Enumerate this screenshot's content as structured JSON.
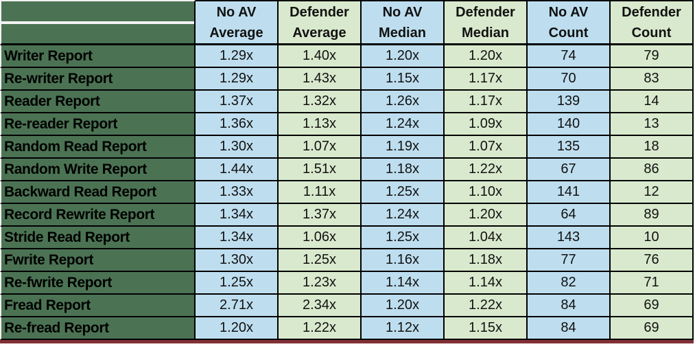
{
  "colors": {
    "label_column_bg": "#4b7353",
    "blue_column_bg": "#bedeef",
    "green_column_bg": "#d9e9cd",
    "gridline": "#000000",
    "outer_white_edge": "#f2f2f2",
    "bottom_rule": "#823036",
    "text": "#000000"
  },
  "chart_data": {
    "type": "table",
    "header": [
      {
        "lines": [
          "No AV",
          "Average"
        ],
        "fill": "blue"
      },
      {
        "lines": [
          "Defender",
          "Average"
        ],
        "fill": "green"
      },
      {
        "lines": [
          "No AV",
          "Median"
        ],
        "fill": "blue"
      },
      {
        "lines": [
          "Defender",
          "Median"
        ],
        "fill": "green"
      },
      {
        "lines": [
          "No AV",
          "Count"
        ],
        "fill": "blue"
      },
      {
        "lines": [
          "Defender",
          "Count"
        ],
        "fill": "green"
      }
    ],
    "rows": [
      {
        "label": "Writer Report",
        "values": [
          "1.29x",
          "1.40x",
          "1.20x",
          "1.20x",
          "74",
          "79"
        ]
      },
      {
        "label": "Re-writer Report",
        "values": [
          "1.29x",
          "1.43x",
          "1.15x",
          "1.17x",
          "70",
          "83"
        ]
      },
      {
        "label": "Reader Report",
        "values": [
          "1.37x",
          "1.32x",
          "1.26x",
          "1.17x",
          "139",
          "14"
        ]
      },
      {
        "label": "Re-reader Report",
        "values": [
          "1.36x",
          "1.13x",
          "1.24x",
          "1.09x",
          "140",
          "13"
        ]
      },
      {
        "label": "Random Read Report",
        "values": [
          "1.30x",
          "1.07x",
          "1.19x",
          "1.07x",
          "135",
          "18"
        ]
      },
      {
        "label": "Random Write Report",
        "values": [
          "1.44x",
          "1.51x",
          "1.18x",
          "1.22x",
          "67",
          "86"
        ]
      },
      {
        "label": "Backward Read Report",
        "values": [
          "1.33x",
          "1.11x",
          "1.25x",
          "1.10x",
          "141",
          "12"
        ]
      },
      {
        "label": "Record Rewrite Report",
        "values": [
          "1.34x",
          "1.37x",
          "1.24x",
          "1.20x",
          "64",
          "89"
        ]
      },
      {
        "label": "Stride Read Report",
        "values": [
          "1.34x",
          "1.06x",
          "1.25x",
          "1.04x",
          "143",
          "10"
        ]
      },
      {
        "label": "Fwrite Report",
        "values": [
          "1.30x",
          "1.25x",
          "1.16x",
          "1.18x",
          "77",
          "76"
        ]
      },
      {
        "label": "Re-fwrite Report",
        "values": [
          "1.25x",
          "1.23x",
          "1.14x",
          "1.14x",
          "82",
          "71"
        ]
      },
      {
        "label": "Fread Report",
        "values": [
          "2.71x",
          "2.34x",
          "1.20x",
          "1.22x",
          "84",
          "69"
        ]
      },
      {
        "label": "Re-fread Report",
        "values": [
          "1.20x",
          "1.22x",
          "1.12x",
          "1.15x",
          "84",
          "69"
        ]
      }
    ]
  }
}
